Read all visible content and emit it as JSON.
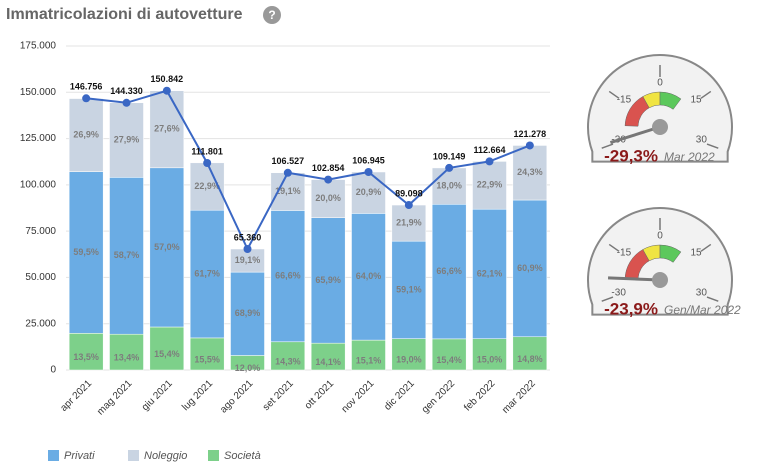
{
  "chart_data": {
    "type": "stacked-bar-line",
    "title": "Immatricolazioni di autovetture",
    "help": "?",
    "categories": [
      "apr 2021",
      "mag 2021",
      "giu 2021",
      "lug 2021",
      "ago 2021",
      "set 2021",
      "ott 2021",
      "nov 2021",
      "dic 2021",
      "gen 2022",
      "feb 2022",
      "mar 2022"
    ],
    "series": [
      {
        "name": "Privati",
        "color": "#6aace4",
        "values": [
          59.5,
          58.7,
          57.0,
          61.7,
          68.9,
          66.6,
          65.9,
          64.0,
          59.1,
          66.6,
          62.1,
          60.9
        ],
        "value_labels": [
          "59,5%",
          "58,7%",
          "57,0%",
          "61,7%",
          "68,9%",
          "66,6%",
          "65,9%",
          "64,0%",
          "59,1%",
          "66,6%",
          "62,1%",
          "60,9%"
        ]
      },
      {
        "name": "Noleggio",
        "color": "#c9d4e2",
        "values": [
          26.9,
          27.9,
          27.6,
          22.9,
          19.1,
          19.1,
          20.0,
          20.9,
          21.9,
          18.0,
          22.9,
          24.3
        ],
        "value_labels": [
          "26,9%",
          "27,9%",
          "27,6%",
          "22,9%",
          "19,1%",
          "19,1%",
          "20,0%",
          "20,9%",
          "21,9%",
          "18,0%",
          "22,9%",
          "24,3%"
        ]
      },
      {
        "name": "Società",
        "color": "#7dd08a",
        "values": [
          13.5,
          13.4,
          15.4,
          15.5,
          12.0,
          14.3,
          14.1,
          15.1,
          19.0,
          15.4,
          15.0,
          14.8
        ],
        "value_labels": [
          "13,5%",
          "13,4%",
          "15,4%",
          "15,5%",
          "12,0%",
          "14,3%",
          "14,1%",
          "15,1%",
          "19,0%",
          "15,4%",
          "15,0%",
          "14,8%"
        ]
      }
    ],
    "totals": {
      "color": "#3a67c4",
      "values": [
        146756,
        144330,
        150842,
        111801,
        65360,
        106527,
        102854,
        106945,
        89098,
        109149,
        112664,
        121278
      ],
      "value_labels": [
        "146.756",
        "144.330",
        "150.842",
        "111.801",
        "65.360",
        "106.527",
        "102.854",
        "106.945",
        "89.098",
        "109.149",
        "112.664",
        "121.278"
      ]
    },
    "ylim": [
      0,
      175000
    ],
    "yticks": [
      0,
      {
        "value": 25000,
        "label": "25.000"
      },
      {
        "value": 50000,
        "label": "50.000"
      },
      {
        "value": 75000,
        "label": "75.000"
      },
      {
        "value": 100000,
        "label": "100.000"
      },
      {
        "value": 125000,
        "label": "125.000"
      },
      {
        "value": 150000,
        "label": "150.000"
      },
      {
        "value": 175000,
        "label": "175.000"
      }
    ],
    "grid": true,
    "gauge_lim": [
      -30,
      30
    ],
    "gauge_ticks": [
      -30,
      -15,
      0,
      15,
      30
    ],
    "gauge_bands": [
      {
        "from": -24,
        "to": -8,
        "color": "#d9534f"
      },
      {
        "from": -8,
        "to": 0,
        "color": "#f0e442"
      },
      {
        "from": 0,
        "to": 10,
        "color": "#5cc85c"
      }
    ],
    "gauges": [
      {
        "value": -29.3,
        "value_label": "-29,3%",
        "period": "Mar 2022"
      },
      {
        "value": -23.9,
        "value_label": "-23,9%",
        "period": "Gen/Mar 2022"
      }
    ]
  }
}
